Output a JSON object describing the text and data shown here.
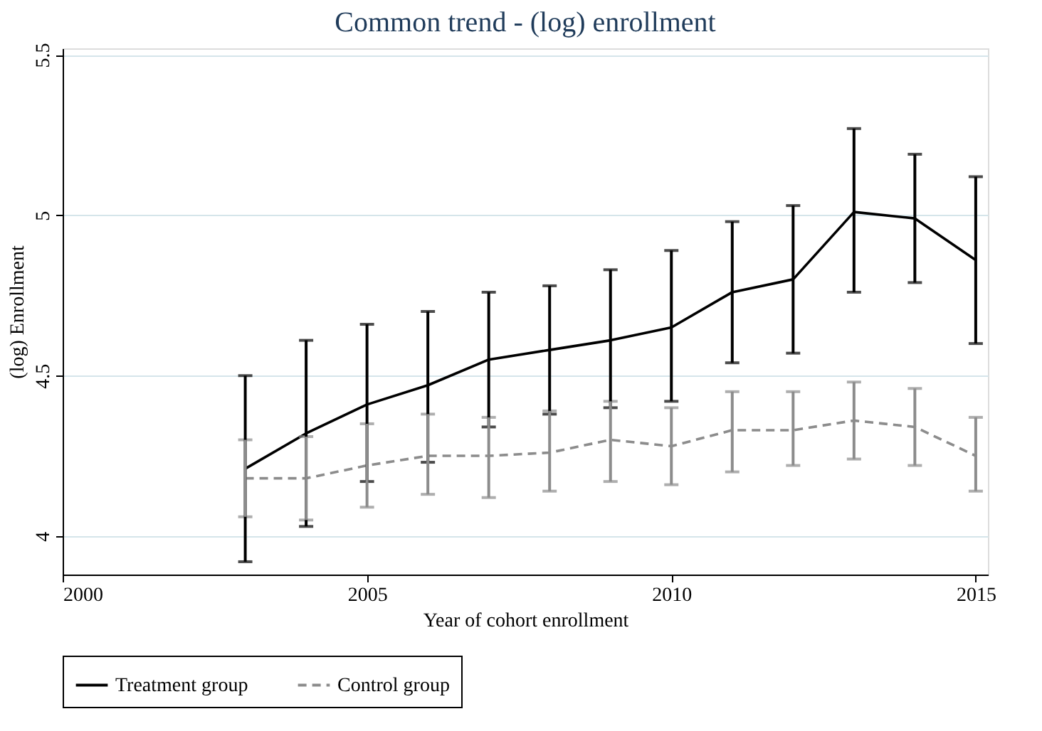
{
  "chart_data": {
    "type": "line",
    "title": "Common trend - (log) enrollment",
    "xlabel": "Year of cohort enrollment",
    "ylabel": "(log) Enrollment",
    "x": [
      2003,
      2004,
      2005,
      2006,
      2007,
      2008,
      2009,
      2010,
      2011,
      2012,
      2013,
      2014,
      2015
    ],
    "series": [
      {
        "name": "Treatment group",
        "color": "#000000",
        "line_style": "solid",
        "values": [
          4.21,
          4.32,
          4.41,
          4.47,
          4.55,
          4.58,
          4.61,
          4.65,
          4.76,
          4.8,
          5.01,
          4.99,
          4.86
        ],
        "errors": [
          [
            3.92,
            4.5
          ],
          [
            4.03,
            4.61
          ],
          [
            4.17,
            4.66
          ],
          [
            4.23,
            4.7
          ],
          [
            4.34,
            4.76
          ],
          [
            4.38,
            4.78
          ],
          [
            4.4,
            4.83
          ],
          [
            4.42,
            4.89
          ],
          [
            4.54,
            4.98
          ],
          [
            4.57,
            5.03
          ],
          [
            4.76,
            5.27
          ],
          [
            4.79,
            5.19
          ],
          [
            4.6,
            5.12
          ]
        ]
      },
      {
        "name": "Control group",
        "color": "#8c8c8c",
        "line_style": "dashed",
        "values": [
          4.18,
          4.18,
          4.22,
          4.25,
          4.25,
          4.26,
          4.3,
          4.28,
          4.33,
          4.33,
          4.36,
          4.34,
          4.25
        ],
        "errors": [
          [
            4.06,
            4.3
          ],
          [
            4.05,
            4.31
          ],
          [
            4.09,
            4.35
          ],
          [
            4.13,
            4.38
          ],
          [
            4.12,
            4.37
          ],
          [
            4.14,
            4.39
          ],
          [
            4.17,
            4.42
          ],
          [
            4.16,
            4.4
          ],
          [
            4.2,
            4.45
          ],
          [
            4.22,
            4.45
          ],
          [
            4.24,
            4.48
          ],
          [
            4.22,
            4.46
          ],
          [
            4.14,
            4.37
          ]
        ]
      }
    ],
    "xlim": [
      2000,
      2015.2
    ],
    "xticks": [
      2000,
      2005,
      2010,
      2015
    ],
    "ylim": [
      3.88,
      5.52
    ],
    "yticks": [
      4,
      4.5,
      5,
      5.5
    ],
    "grid": "y",
    "legend": "bottom",
    "marker": "none"
  }
}
